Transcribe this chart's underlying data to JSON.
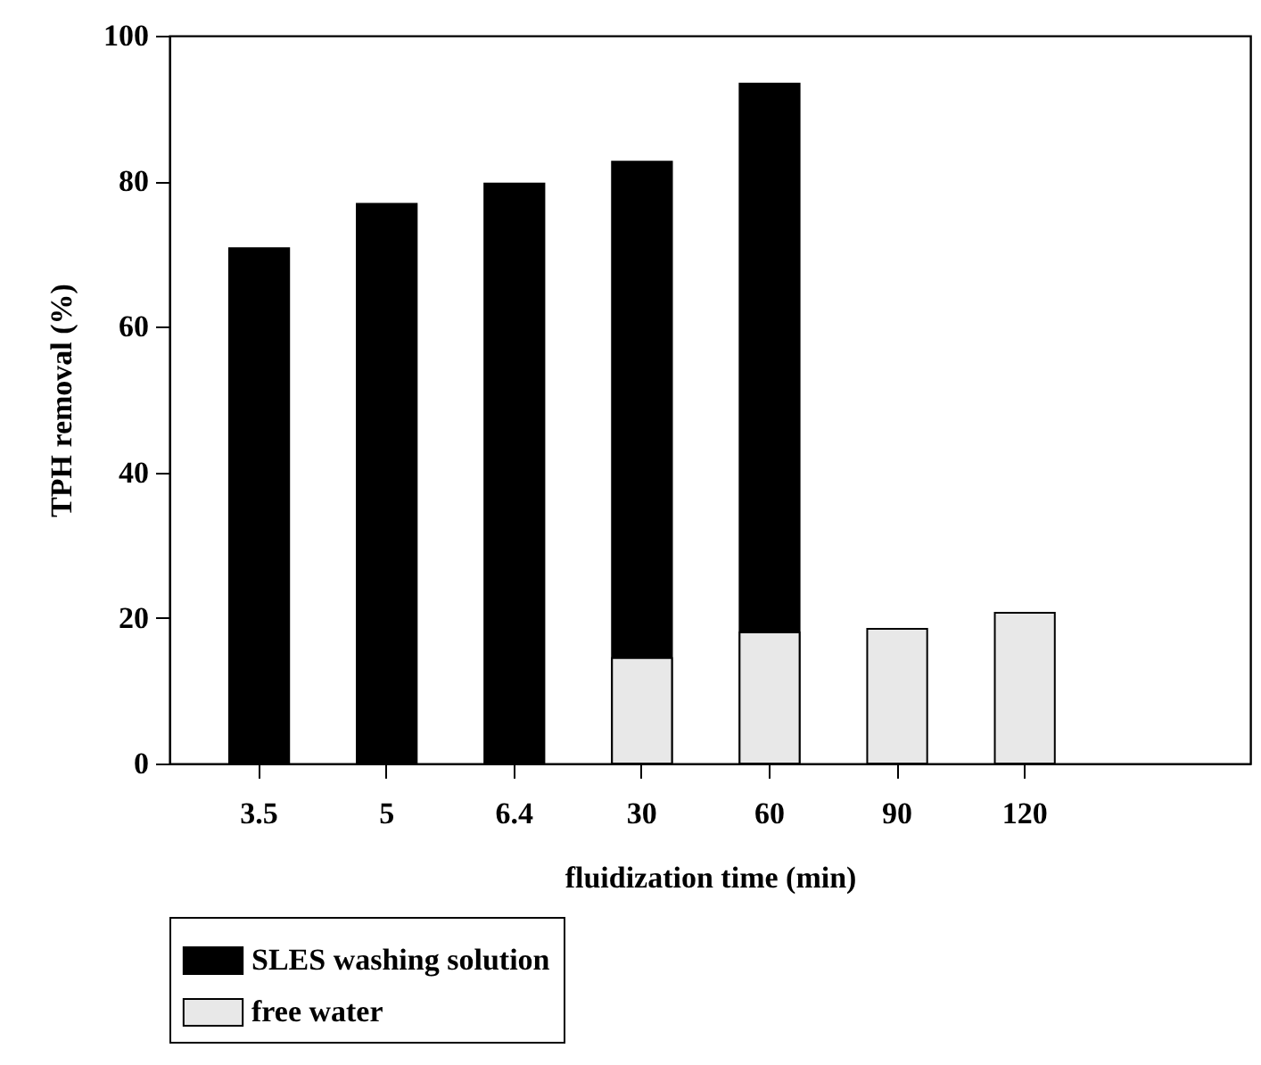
{
  "chart_data": {
    "type": "bar",
    "xlabel": "fluidization time (min)",
    "ylabel": "TPH removal (%)",
    "categories": [
      "3.5",
      "5",
      "6.4",
      "30",
      "60",
      "90",
      "120"
    ],
    "series": [
      {
        "name": "SLES washing solution",
        "color": "#000000",
        "values": [
          70.8,
          76.9,
          79.7,
          82.7,
          93.4,
          null,
          null
        ]
      },
      {
        "name": "free water",
        "color": "#e8e8e8",
        "values": [
          null,
          null,
          null,
          14.5,
          18.0,
          18.5,
          20.7
        ]
      }
    ],
    "ylim": [
      0,
      100
    ],
    "yticks": [
      0,
      20,
      40,
      60,
      80,
      100
    ],
    "grid": false,
    "legend": "bottom left"
  }
}
